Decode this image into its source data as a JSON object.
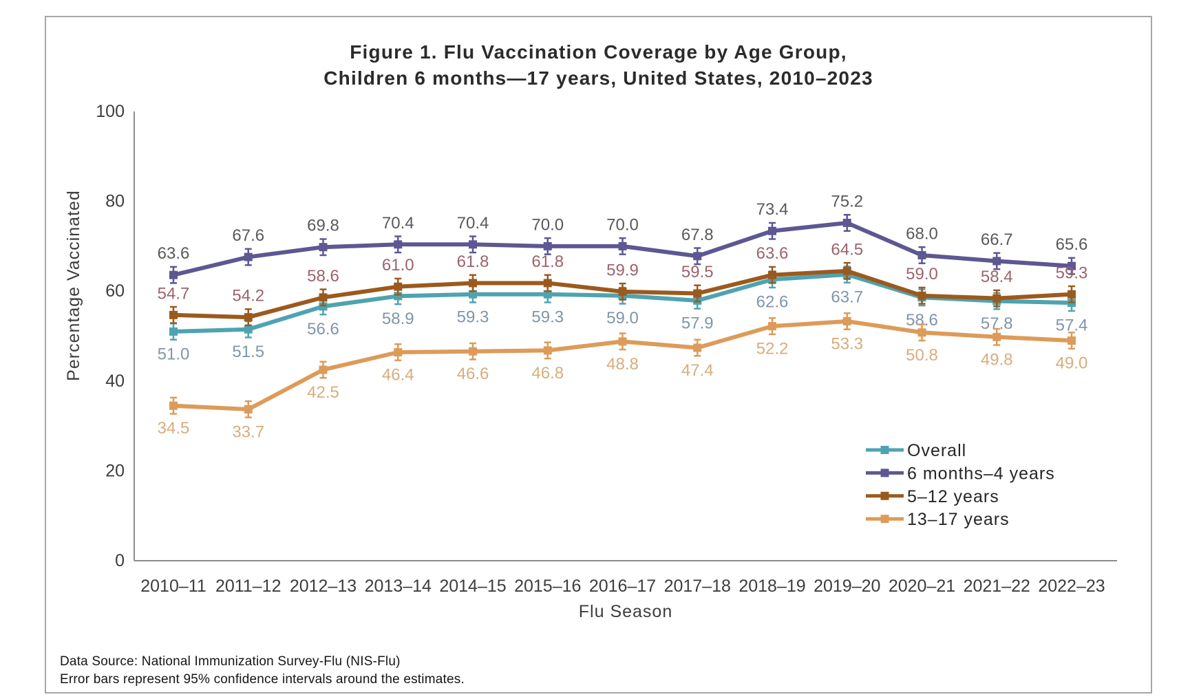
{
  "figure": {
    "title_line1": "Figure 1. Flu Vaccination Coverage by Age Group,",
    "title_line2": "Children 6 months—17 years, United States, 2010–2023",
    "footnote_line1": "Data Source: National Immunization Survey-Flu (NIS-Flu)",
    "footnote_line2": "Error bars represent 95% confidence intervals around the estimates."
  },
  "chart_data": {
    "type": "line",
    "title": "Figure 1. Flu Vaccination Coverage by Age Group, Children 6 months—17 years, United States, 2010–2023",
    "xlabel": "Flu Season",
    "ylabel": "Percentage Vaccinated",
    "ylim": [
      0,
      100
    ],
    "yticks": [
      0,
      20,
      40,
      60,
      80,
      100
    ],
    "grid": false,
    "legend_position": "inside bottom-right",
    "error_bars": "95% confidence intervals shown at every data point",
    "categories": [
      "2010–11",
      "2011–12",
      "2012–13",
      "2013–14",
      "2014–15",
      "2015–16",
      "2016–17",
      "2017–18",
      "2018–19",
      "2019–20",
      "2020–21",
      "2021–22",
      "2022–23"
    ],
    "series": [
      {
        "name": "Overall",
        "color": "#4fa3b1",
        "label_color": "#8095a9",
        "label_position": "below",
        "values": [
          51.0,
          51.5,
          56.6,
          58.9,
          59.3,
          59.3,
          59.0,
          57.9,
          62.6,
          63.7,
          58.6,
          57.8,
          57.4
        ]
      },
      {
        "name": "6 months–4 years",
        "color": "#5d5792",
        "label_color": "#595959",
        "label_position": "above",
        "values": [
          63.6,
          67.6,
          69.8,
          70.4,
          70.4,
          70.0,
          70.0,
          67.8,
          73.4,
          75.2,
          68.0,
          66.7,
          65.6
        ]
      },
      {
        "name": "5–12 years",
        "color": "#9b5a1d",
        "label_color": "#9c636c",
        "label_position": "above",
        "values": [
          54.7,
          54.2,
          58.6,
          61.0,
          61.8,
          61.8,
          59.9,
          59.5,
          63.6,
          64.5,
          59.0,
          58.4,
          59.3
        ]
      },
      {
        "name": "13–17 years",
        "color": "#dd9b59",
        "label_color": "#d7ad7c",
        "label_position": "below",
        "values": [
          34.5,
          33.7,
          42.5,
          46.4,
          46.6,
          46.8,
          48.8,
          47.4,
          52.2,
          53.3,
          50.8,
          49.8,
          49.0
        ]
      }
    ]
  }
}
